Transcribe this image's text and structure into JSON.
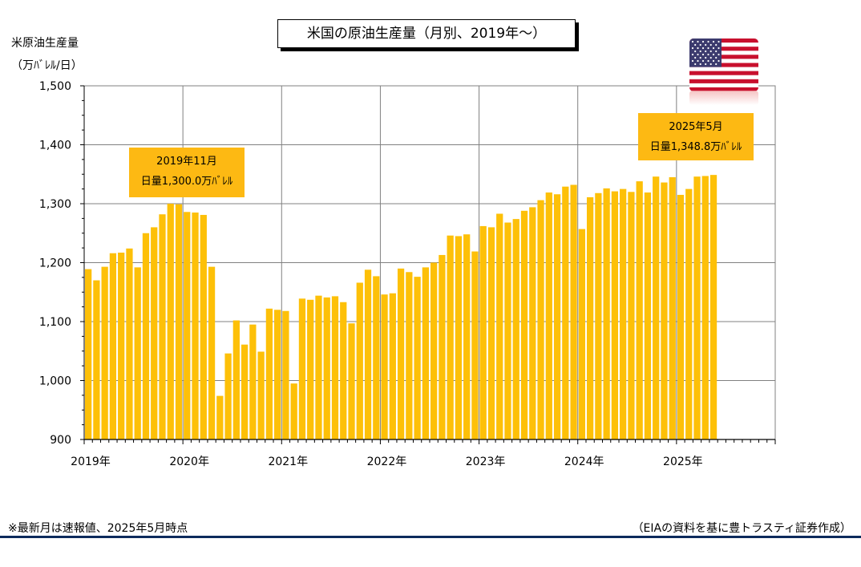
{
  "title": "米国の原油生産量（月別、2019年～）",
  "y_axis": {
    "label_line1": "米原油生産量",
    "label_line2": "（万ﾊﾞﾚﾙ/日）"
  },
  "annotations": [
    {
      "line1": "2019年11月",
      "line2": "日量1,300.0万ﾊﾞﾚﾙ"
    },
    {
      "line1": "2025年5月",
      "line2": "日量1,348.8万ﾊﾞﾚﾙ"
    }
  ],
  "footnote": "※最新月は速報値、2025年5月時点",
  "source": "（EIAの資料を基に豊トラスティ証券作成）",
  "flag": "us-flag-icon",
  "colors": {
    "bar": "#fdc008",
    "callout": "#fdb913",
    "grid": "#808080",
    "footer_rule": "#0d2a5c"
  },
  "chart_data": {
    "type": "bar",
    "ylim": [
      900,
      1500
    ],
    "yticks": [
      900,
      1000,
      1100,
      1200,
      1300,
      1400,
      1500
    ],
    "ytick_labels": [
      "900",
      "1,000",
      "1,100",
      "1,200",
      "1,300",
      "1,400",
      "1,500"
    ],
    "xticks": [
      "2019年",
      "2020年",
      "2021年",
      "2022年",
      "2023年",
      "2024年",
      "2025年"
    ],
    "start": "2019-01",
    "months_span": 84,
    "grid": true,
    "legend": "none",
    "series": [
      {
        "values": [
          1189,
          1170,
          1193,
          1216,
          1217,
          1224,
          1192,
          1250,
          1260,
          1282,
          1300,
          1299,
          1286,
          1285,
          1281,
          1193,
          974,
          1046,
          1102,
          1061,
          1095,
          1049,
          1122,
          1120,
          1118,
          995,
          1139,
          1137,
          1144,
          1141,
          1143,
          1133,
          1097,
          1166,
          1188,
          1177,
          1146,
          1148,
          1190,
          1184,
          1176,
          1192,
          1200,
          1213,
          1246,
          1245,
          1248,
          1219,
          1262,
          1260,
          1283,
          1268,
          1274,
          1288,
          1294,
          1306,
          1319,
          1316,
          1329,
          1332,
          1257,
          1311,
          1318,
          1326,
          1321,
          1325,
          1320,
          1338,
          1319,
          1346,
          1336,
          1345,
          1315,
          1325,
          1346,
          1347,
          1348.8
        ]
      }
    ]
  }
}
